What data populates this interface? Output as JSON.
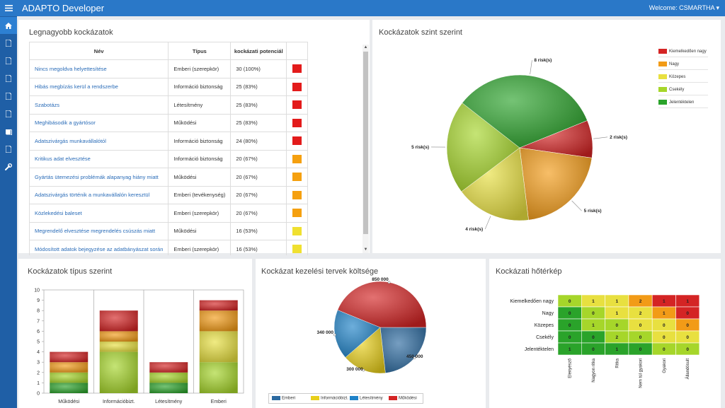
{
  "header": {
    "app_title": "ADAPTO Developer",
    "welcome": "Welcome: CSMARTHA ▾"
  },
  "sidebar": {
    "items": [
      {
        "icon": "home-icon",
        "active": true
      },
      {
        "icon": "document-icon"
      },
      {
        "icon": "document-icon"
      },
      {
        "icon": "document-icon"
      },
      {
        "icon": "document-icon"
      },
      {
        "icon": "document-icon"
      },
      {
        "icon": "book-icon"
      },
      {
        "icon": "document-icon"
      },
      {
        "icon": "wrench-icon"
      }
    ]
  },
  "top_risks": {
    "title": "Legnagyobb kockázatok",
    "columns": [
      "Név",
      "Típus",
      "kockázati potenciál",
      ""
    ],
    "rows": [
      {
        "name": "Nincs megoldva helyettesítése",
        "type": "Emberi (szerepkör)",
        "potential": "30 (100%)",
        "color": "#e31b1b"
      },
      {
        "name": "Hibás megbízás kerül a rendszerbe",
        "type": "Információ biztonság",
        "potential": "25 (83%)",
        "color": "#e31b1b"
      },
      {
        "name": "Szabotázs",
        "type": "Létesítmény",
        "potential": "25 (83%)",
        "color": "#e31b1b"
      },
      {
        "name": "Meghibásodik a gyártósor",
        "type": "Működési",
        "potential": "25 (83%)",
        "color": "#e31b1b"
      },
      {
        "name": "Adatszivárgás munkavállalótól",
        "type": "Információ biztonság",
        "potential": "24 (80%)",
        "color": "#e31b1b"
      },
      {
        "name": "Kritikus adat elvesztése",
        "type": "Információ biztonság",
        "potential": "20 (67%)",
        "color": "#f5a00f"
      },
      {
        "name": "Gyártás ütemezési problémák alapanyag hiány miatt",
        "type": "Működési",
        "potential": "20 (67%)",
        "color": "#f5a00f"
      },
      {
        "name": "Adatszivárgás történik a munkavállalón keresztül",
        "type": "Emberi (tevékenység)",
        "potential": "20 (67%)",
        "color": "#f5a00f"
      },
      {
        "name": "Közlekedési baleset",
        "type": "Emberi (szerepkör)",
        "potential": "20 (67%)",
        "color": "#f5a00f"
      },
      {
        "name": "Megrendelő elvesztése megrendelés csúszás miatt",
        "type": "Működési",
        "potential": "16 (53%)",
        "color": "#f0e030"
      },
      {
        "name": "Módosított adatok bejegyzése az adatbányászat során",
        "type": "Emberi (szerepkör)",
        "potential": "16 (53%)",
        "color": "#f0e030"
      }
    ],
    "scroll_up": "▲",
    "scroll_down": "▼"
  },
  "risk_level_chart": {
    "title": "Kockázatok szint szerint",
    "chart_data": {
      "type": "pie",
      "slices": [
        {
          "label": "2 risk(s)",
          "category": "Kiemelkedően nagy",
          "value": 2,
          "color": "#d42424"
        },
        {
          "label": "5 risk(s)",
          "category": "Nagy",
          "value": 5,
          "color": "#f29b17"
        },
        {
          "label": "4 risk(s)",
          "category": "Közepes",
          "value": 4,
          "color": "#e8e040"
        },
        {
          "label": "5 risk(s)",
          "category": "Csekély",
          "value": 5,
          "color": "#a6d62a"
        },
        {
          "label": "8 risk(s)",
          "category": "Jelentéktelen",
          "value": 8,
          "color": "#2aa32a"
        }
      ],
      "legend": [
        "Kiemelkedően nagy",
        "Nagy",
        "Közepes",
        "Csekély",
        "Jelentéktelen"
      ],
      "legend_placement": "top-right"
    }
  },
  "type_chart": {
    "title": "Kockázatok típus szerint",
    "chart_data": {
      "type": "bar",
      "stacked": true,
      "categories": [
        "Működési",
        "Információbizt.",
        "Létesítmény",
        "Emberi"
      ],
      "ylim": [
        0,
        10
      ],
      "yticks": [
        0,
        1,
        2,
        3,
        4,
        5,
        6,
        7,
        8,
        9,
        10
      ],
      "series": [
        {
          "color": "#2aa32a",
          "values": [
            1,
            0,
            1,
            0
          ]
        },
        {
          "color": "#a6d62a",
          "values": [
            1,
            4,
            1,
            3
          ]
        },
        {
          "color": "#e8e040",
          "values": [
            0,
            1,
            0,
            3
          ]
        },
        {
          "color": "#f29b17",
          "values": [
            1,
            1,
            0,
            2
          ]
        },
        {
          "color": "#d42424",
          "values": [
            1,
            2,
            1,
            1
          ]
        }
      ]
    }
  },
  "cost_chart": {
    "title": "Kockázat kezelési tervek költsége",
    "chart_data": {
      "type": "pie",
      "slices": [
        {
          "name": "Emberi",
          "value": 450000,
          "label": "450 000",
          "color": "#2c6aa0"
        },
        {
          "name": "Információbizt.",
          "value": 300000,
          "label": "300 000",
          "color": "#e8cf1a"
        },
        {
          "name": "Létesítmény",
          "value": 340000,
          "label": "340 000",
          "color": "#1f82c8"
        },
        {
          "name": "Működési",
          "value": 850000,
          "label": "850 000",
          "color": "#d42424"
        }
      ],
      "legend_placement": "bottom"
    }
  },
  "heatmap": {
    "title": "Kockázati hőtérkép",
    "chart_data": {
      "type": "heatmap",
      "rows": [
        "Kiemelkedően nagy",
        "Nagy",
        "Közepes",
        "Csekély",
        "Jelentéktelen"
      ],
      "cols": [
        "Elenyésző",
        "Nagyon ritka",
        "Ritka",
        "Nem túl gyakori",
        "Gyakori",
        "Állandósult"
      ],
      "values": [
        [
          0,
          1,
          1,
          2,
          1,
          1
        ],
        [
          0,
          0,
          1,
          2,
          1,
          0
        ],
        [
          0,
          1,
          0,
          0,
          0,
          0
        ],
        [
          0,
          0,
          2,
          0,
          0,
          0
        ],
        [
          1,
          0,
          1,
          0,
          0,
          0
        ]
      ],
      "colors": [
        [
          "#a6d62a",
          "#e8e040",
          "#e8e040",
          "#f29b17",
          "#d42424",
          "#d42424"
        ],
        [
          "#2aa32a",
          "#a6d62a",
          "#e8e040",
          "#e8e040",
          "#f29b17",
          "#d42424"
        ],
        [
          "#2aa32a",
          "#a6d62a",
          "#a6d62a",
          "#e8e040",
          "#e8e040",
          "#f29b17"
        ],
        [
          "#2aa32a",
          "#2aa32a",
          "#a6d62a",
          "#a6d62a",
          "#e8e040",
          "#e8e040"
        ],
        [
          "#2aa32a",
          "#2aa32a",
          "#2aa32a",
          "#2aa32a",
          "#a6d62a",
          "#a6d62a"
        ]
      ]
    }
  }
}
